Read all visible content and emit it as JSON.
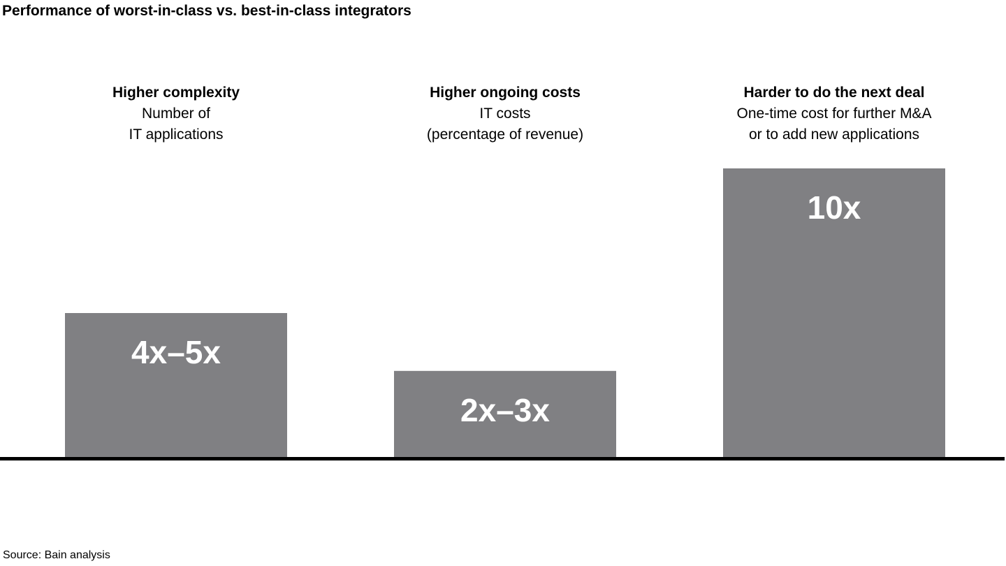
{
  "title": "Performance of worst-in-class vs. best-in-class integrators",
  "source": "Source: Bain analysis",
  "colors": {
    "bar": "#808083",
    "baseline": "#000000",
    "label": "#ffffff"
  },
  "chart_data": {
    "type": "bar",
    "title": "Performance of worst-in-class vs. best-in-class integrators",
    "categories": [
      {
        "heading": "Higher complexity",
        "subtitle": "Number of\nIT applications"
      },
      {
        "heading": "Higher ongoing costs",
        "subtitle": "IT costs\n(percentage of revenue)"
      },
      {
        "heading": "Harder to do the next deal",
        "subtitle": "One-time cost for further M&A\nor to add new applications"
      }
    ],
    "values": [
      5,
      3,
      10
    ],
    "data_labels": [
      "4x–5x",
      "2x–3x",
      "10x"
    ],
    "ylim": [
      0,
      10
    ],
    "grid": false,
    "legend": "none"
  }
}
